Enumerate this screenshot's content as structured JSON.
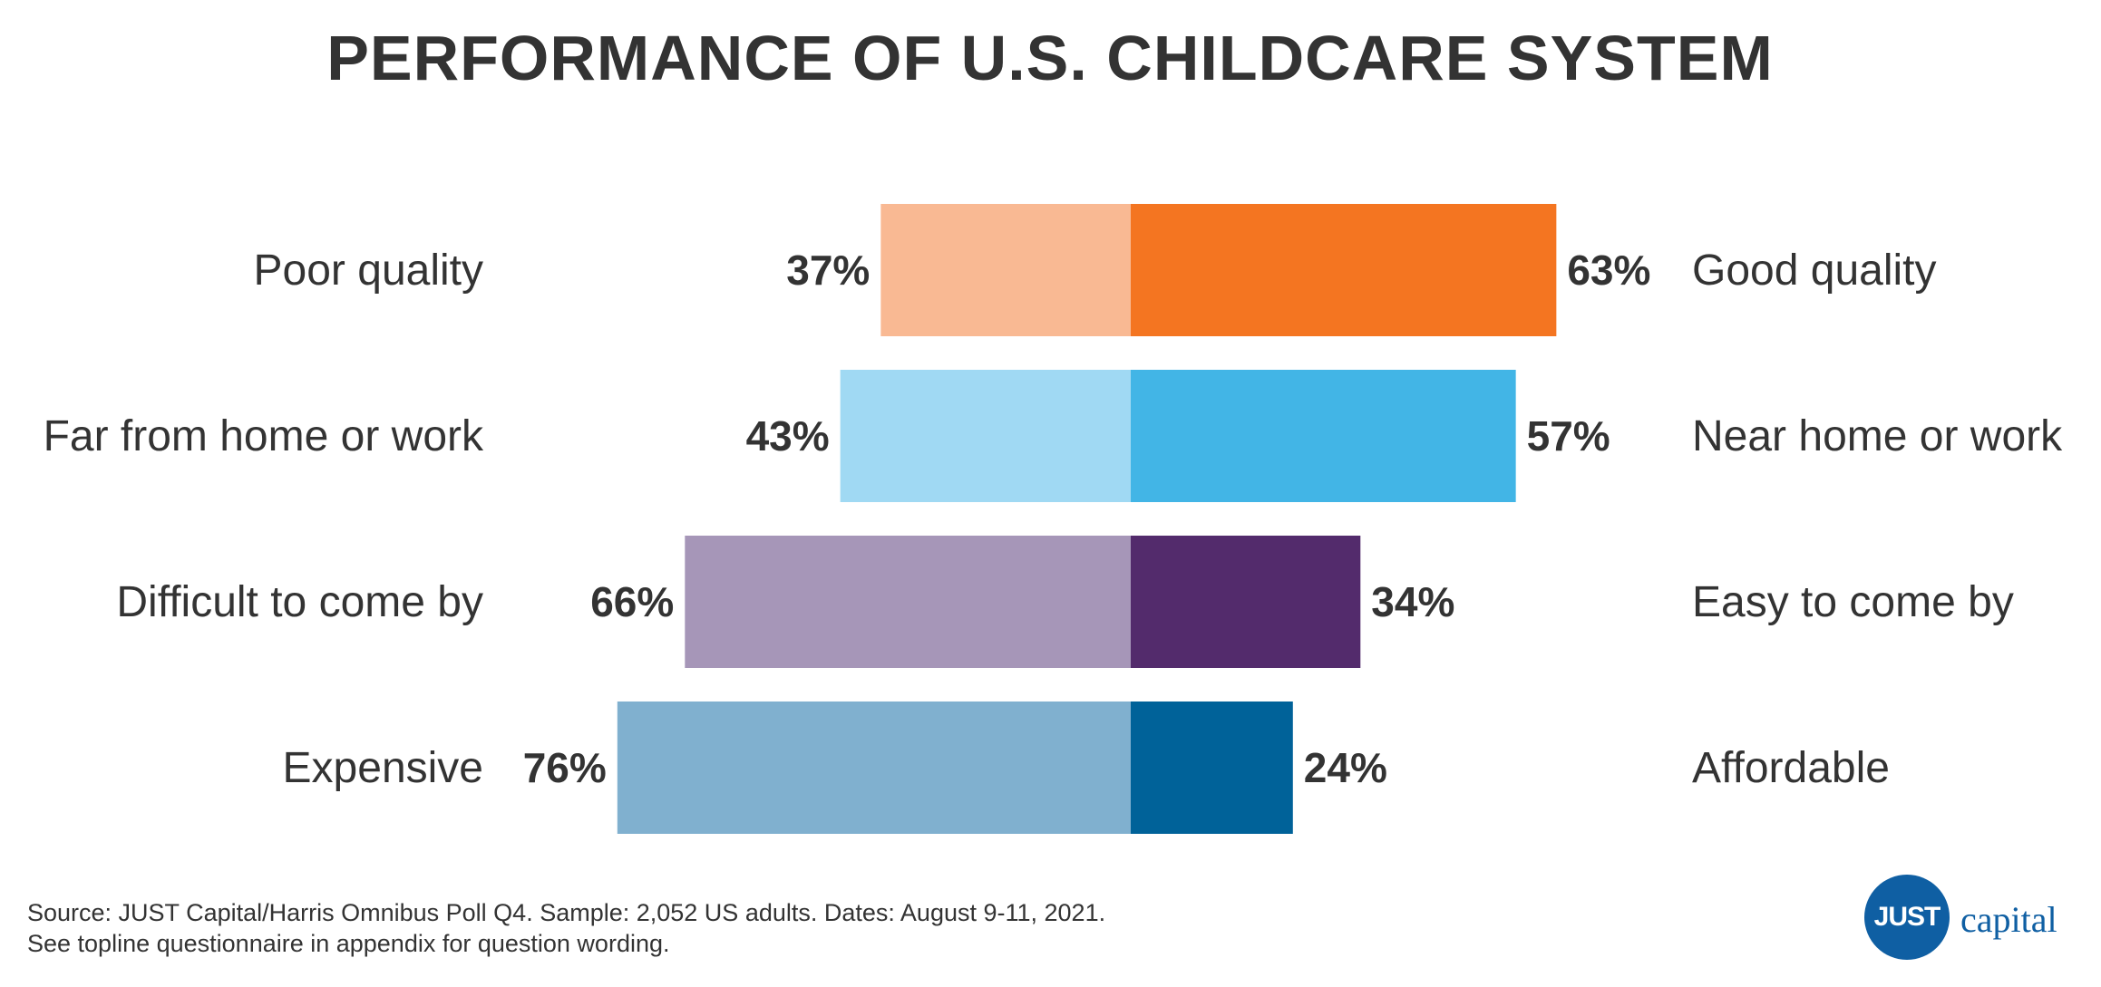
{
  "chart_data": {
    "type": "bar",
    "orientation": "diverging-horizontal",
    "title": "PERFORMANCE OF U.S. CHILDCARE SYSTEM",
    "rows": [
      {
        "left_label": "Poor quality",
        "left_value": 37,
        "left_value_label": "37%",
        "right_label": "Good quality",
        "right_value": 63,
        "right_value_label": "63%",
        "left_color": "#f9b993",
        "right_color": "#f47521"
      },
      {
        "left_label": "Far from home or work",
        "left_value": 43,
        "left_value_label": "43%",
        "right_label": "Near home or work",
        "right_value": 57,
        "right_value_label": "57%",
        "left_color": "#a0d9f3",
        "right_color": "#42b5e6"
      },
      {
        "left_label": "Difficult to come by",
        "left_value": 66,
        "left_value_label": "66%",
        "right_label": "Easy to come by",
        "right_value": 34,
        "right_value_label": "34%",
        "left_color": "#a696b8",
        "right_color": "#532b6c"
      },
      {
        "left_label": "Expensive",
        "left_value": 76,
        "left_value_label": "76%",
        "right_label": "Affordable",
        "right_value": 24,
        "right_value_label": "24%",
        "left_color": "#80b0cf",
        "right_color": "#006299"
      }
    ],
    "value_unit": "%",
    "grid": false,
    "legend": "none"
  },
  "footer": {
    "source_line1": "Source: JUST Capital/Harris Omnibus Poll Q4. Sample: 2,052 US adults. Dates: August 9-11, 2021.",
    "source_line2": "See topline questionnaire in appendix for question wording."
  },
  "logo": {
    "mark": "JUST",
    "word": "capital",
    "color": "#0f5fa3"
  }
}
